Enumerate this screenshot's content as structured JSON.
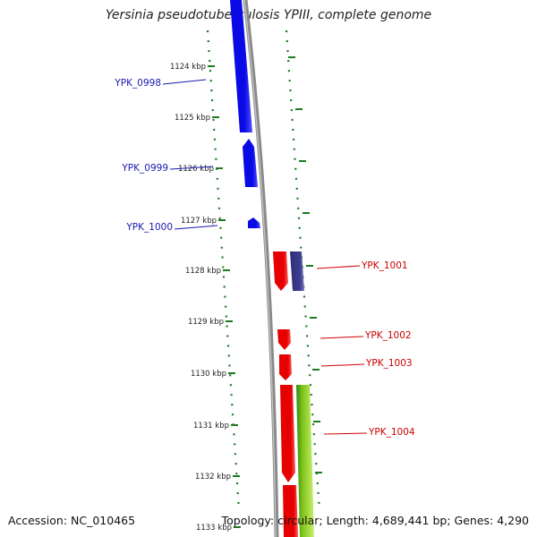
{
  "title": "Yersinia pseudotuberculosis YPIII, complete genome",
  "footer": {
    "accession": "Accession: NC_010465",
    "summary": "Topology: circular; Length: 4,689,441 bp; Genes: 4,290"
  },
  "colors": {
    "minus_strand": "#0a0ae6",
    "plus_strand": "#e60000",
    "feature_purple": "#3d3d8f",
    "feature_green": "#7fc41a",
    "axis": "#8a8a8a",
    "ticks": "#1f7a1f",
    "minus_label": "#1a1ab0",
    "plus_label": "#cc0000"
  },
  "ticks": [
    "1124 kbp",
    "1125 kbp",
    "1126 kbp",
    "1127 kbp",
    "1128 kbp",
    "1129 kbp",
    "1130 kbp",
    "1131 kbp",
    "1132 kbp",
    "1133 kbp"
  ],
  "genes": [
    {
      "name": "YPK_0998",
      "strand": "minus"
    },
    {
      "name": "YPK_0999",
      "strand": "minus"
    },
    {
      "name": "YPK_1000",
      "strand": "minus"
    },
    {
      "name": "YPK_1001",
      "strand": "plus"
    },
    {
      "name": "YPK_1002",
      "strand": "plus"
    },
    {
      "name": "YPK_1003",
      "strand": "plus"
    },
    {
      "name": "YPK_1004",
      "strand": "plus"
    }
  ]
}
